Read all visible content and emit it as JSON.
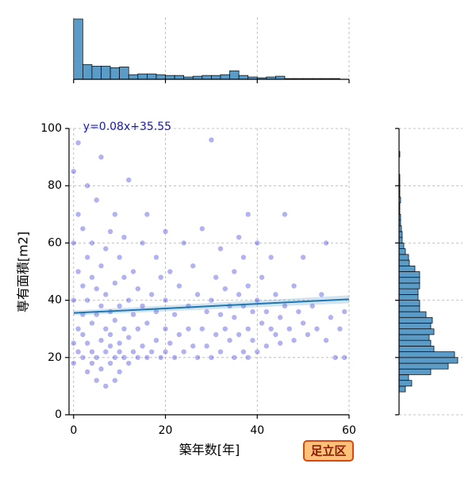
{
  "badge": "足立区",
  "chart_data": [
    {
      "type": "scatter",
      "x_label": "築年数[年]",
      "y_label": "専有面積[m2]",
      "annotation": "y=0.08x+35.55",
      "regression": {
        "slope": 0.08,
        "intercept": 35.55,
        "color": "#1f77b4"
      },
      "color": "#0000cd",
      "annotation_color": "#1a1ab0",
      "xlim": [
        -1,
        60
      ],
      "ylim": [
        0,
        100
      ],
      "xticks": [
        0,
        20,
        40,
        60
      ],
      "yticks": [
        0,
        20,
        40,
        60,
        80,
        100
      ],
      "grid": true,
      "x": [
        0,
        0,
        0,
        0,
        0,
        1,
        1,
        1,
        1,
        1,
        2,
        2,
        2,
        2,
        2,
        3,
        3,
        3,
        3,
        3,
        4,
        4,
        4,
        4,
        4,
        5,
        5,
        5,
        5,
        5,
        6,
        6,
        6,
        6,
        6,
        7,
        7,
        7,
        7,
        7,
        8,
        8,
        8,
        8,
        8,
        9,
        9,
        9,
        9,
        9,
        10,
        10,
        10,
        10,
        10,
        11,
        11,
        11,
        11,
        12,
        12,
        12,
        12,
        13,
        13,
        13,
        14,
        14,
        14,
        15,
        15,
        15,
        16,
        16,
        16,
        17,
        17,
        18,
        18,
        18,
        19,
        19,
        20,
        20,
        20,
        20,
        21,
        21,
        22,
        22,
        23,
        23,
        24,
        24,
        25,
        25,
        26,
        26,
        27,
        27,
        28,
        28,
        29,
        29,
        30,
        30,
        30,
        31,
        31,
        32,
        32,
        32,
        33,
        33,
        34,
        34,
        35,
        35,
        35,
        36,
        36,
        36,
        37,
        37,
        37,
        38,
        38,
        38,
        38,
        39,
        39,
        40,
        40,
        40,
        41,
        41,
        42,
        42,
        43,
        43,
        44,
        44,
        45,
        45,
        46,
        46,
        47,
        48,
        48,
        49,
        50,
        50,
        51,
        52,
        53,
        54,
        55,
        55,
        56,
        57,
        58,
        59,
        59
      ],
      "y": [
        25,
        40,
        60,
        85,
        18,
        30,
        22,
        50,
        70,
        95,
        20,
        35,
        45,
        28,
        65,
        15,
        25,
        40,
        55,
        80,
        22,
        32,
        48,
        60,
        18,
        12,
        20,
        35,
        44,
        75,
        26,
        38,
        52,
        16,
        90,
        22,
        30,
        42,
        58,
        10,
        18,
        28,
        36,
        64,
        24,
        12,
        20,
        33,
        46,
        70,
        15,
        25,
        38,
        55,
        22,
        20,
        30,
        48,
        62,
        18,
        27,
        40,
        82,
        22,
        35,
        50,
        20,
        30,
        44,
        24,
        38,
        60,
        20,
        32,
        70,
        22,
        42,
        26,
        36,
        55,
        20,
        48,
        22,
        30,
        40,
        64,
        25,
        50,
        20,
        35,
        28,
        45,
        22,
        60,
        30,
        38,
        24,
        52,
        20,
        42,
        30,
        65,
        24,
        36,
        20,
        40,
        96,
        28,
        48,
        22,
        35,
        58,
        30,
        44,
        26,
        38,
        20,
        34,
        50,
        28,
        42,
        62,
        22,
        38,
        55,
        20,
        30,
        45,
        70,
        26,
        36,
        22,
        40,
        60,
        32,
        48,
        24,
        36,
        30,
        55,
        28,
        42,
        34,
        25,
        38,
        70,
        30,
        26,
        45,
        36,
        32,
        55,
        28,
        38,
        30,
        42,
        26,
        60,
        34,
        20,
        30,
        36,
        20
      ]
    },
    {
      "type": "histogram",
      "color": "#5b9bc8",
      "ylim": [
        0,
        80
      ],
      "bins": [
        0,
        2,
        4,
        6,
        8,
        10,
        12,
        14,
        16,
        18,
        20,
        22,
        24,
        26,
        28,
        30,
        32,
        34,
        36,
        38,
        40,
        42,
        44,
        46,
        48,
        50,
        52,
        54,
        56,
        58,
        60
      ],
      "values": [
        78,
        19,
        17,
        17,
        15,
        16,
        6,
        7,
        7,
        6,
        5,
        5,
        3,
        4,
        5,
        5,
        6,
        11,
        5,
        3,
        2,
        3,
        4,
        1,
        1,
        1,
        1,
        1,
        1,
        0
      ]
    },
    {
      "type": "histogram",
      "orientation": "horizontal",
      "color": "#5b9bc8",
      "xlim": [
        0,
        80
      ],
      "bins": [
        8,
        10,
        12,
        14,
        16,
        18,
        20,
        22,
        24,
        26,
        28,
        30,
        32,
        34,
        36,
        38,
        40,
        42,
        44,
        46,
        48,
        50,
        52,
        54,
        56,
        58,
        60,
        62,
        64,
        66,
        68,
        70,
        72,
        74,
        76,
        78,
        80,
        82,
        84,
        86,
        88,
        90,
        92,
        94,
        96,
        98,
        100
      ],
      "values": [
        8,
        16,
        12,
        40,
        62,
        74,
        70,
        44,
        40,
        38,
        44,
        40,
        42,
        34,
        26,
        26,
        24,
        24,
        26,
        26,
        26,
        20,
        13,
        12,
        8,
        6,
        4,
        4,
        3,
        2,
        2,
        1,
        1,
        2,
        1,
        1,
        1,
        1,
        0,
        0,
        0,
        1,
        0,
        0,
        0,
        0
      ]
    }
  ]
}
